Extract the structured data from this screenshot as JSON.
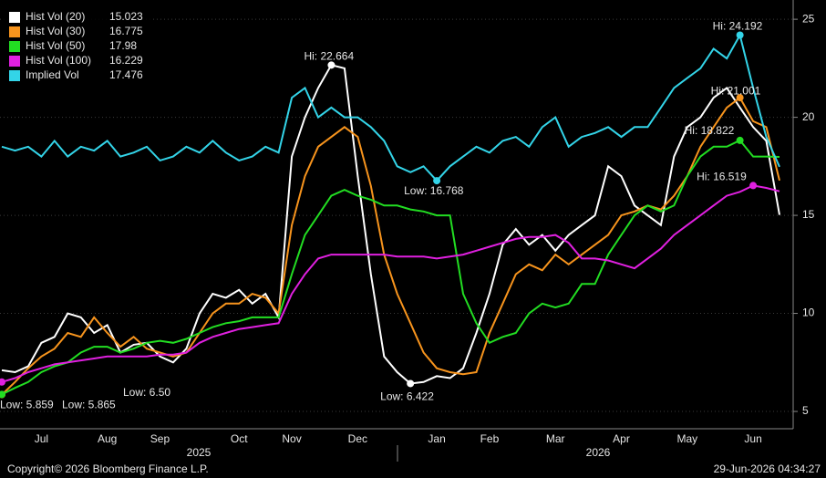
{
  "chart_data": {
    "type": "line",
    "categories": [
      null,
      null,
      null,
      "Jul",
      null,
      null,
      null,
      null,
      "Aug",
      null,
      null,
      null,
      "Sep",
      null,
      null,
      null,
      null,
      null,
      "Oct",
      null,
      null,
      null,
      "Nov",
      null,
      null,
      null,
      null,
      "Dec",
      null,
      null,
      null,
      null,
      null,
      "Jan",
      null,
      null,
      null,
      "Feb",
      null,
      null,
      null,
      null,
      "Mar",
      null,
      null,
      null,
      null,
      "Apr",
      null,
      null,
      null,
      null,
      "May",
      null,
      null,
      null,
      null,
      "Jun",
      null,
      null
    ],
    "year_labels": [
      "2025",
      "2026"
    ],
    "ylim": [
      4.35,
      25.75
    ],
    "yticks": [
      5,
      10,
      15,
      20,
      25
    ],
    "grid": true,
    "series": [
      {
        "name": "Hist Vol (20)",
        "color": "#ffffff",
        "last": 15.023,
        "values": [
          7.1,
          7.0,
          7.3,
          8.5,
          8.8,
          10.0,
          9.8,
          9.0,
          9.4,
          8.0,
          8.4,
          8.5,
          7.8,
          7.5,
          8.2,
          10.0,
          11.0,
          10.8,
          11.2,
          10.5,
          11.0,
          9.8,
          18.0,
          20.0,
          21.5,
          22.664,
          22.5,
          17.0,
          12.0,
          7.8,
          7.0,
          6.422,
          6.5,
          6.8,
          6.7,
          7.2,
          9.0,
          11.0,
          13.5,
          14.3,
          13.5,
          14.0,
          13.2,
          14.0,
          14.5,
          15.0,
          17.5,
          17.0,
          15.5,
          15.0,
          14.5,
          18.0,
          19.5,
          20.0,
          21.0,
          21.5,
          20.5,
          19.5,
          18.8,
          15.023
        ]
      },
      {
        "name": "Hist Vol (30)",
        "color": "#f7941d",
        "last": 16.775,
        "values": [
          5.859,
          6.5,
          7.2,
          7.8,
          8.2,
          9.0,
          8.8,
          9.8,
          9.0,
          8.3,
          8.8,
          8.2,
          8.0,
          7.8,
          8.0,
          9.0,
          10.0,
          10.5,
          10.5,
          11.0,
          10.8,
          10.0,
          14.5,
          17.0,
          18.5,
          19.0,
          19.5,
          19.0,
          16.5,
          13.0,
          11.0,
          9.5,
          8.0,
          7.2,
          7.0,
          6.9,
          7.0,
          9.0,
          10.5,
          12.0,
          12.5,
          12.2,
          13.0,
          12.5,
          13.0,
          13.5,
          14.0,
          15.0,
          15.2,
          15.5,
          15.3,
          16.0,
          17.0,
          18.5,
          19.5,
          20.5,
          21.001,
          19.8,
          19.5,
          16.775
        ]
      },
      {
        "name": "Hist Vol (50)",
        "color": "#22dd22",
        "last": 17.98,
        "values": [
          5.865,
          6.2,
          6.5,
          7.0,
          7.3,
          7.5,
          8.0,
          8.3,
          8.3,
          8.0,
          8.2,
          8.5,
          8.6,
          8.5,
          8.7,
          9.0,
          9.3,
          9.5,
          9.6,
          9.8,
          9.8,
          9.8,
          12.0,
          14.0,
          15.0,
          16.0,
          16.3,
          16.0,
          15.8,
          15.5,
          15.5,
          15.3,
          15.2,
          15.0,
          15.0,
          11.0,
          9.5,
          8.5,
          8.8,
          9.0,
          10.0,
          10.5,
          10.3,
          10.5,
          11.5,
          11.5,
          13.0,
          14.0,
          15.0,
          15.5,
          15.2,
          15.5,
          17.0,
          18.0,
          18.5,
          18.5,
          18.822,
          18.0,
          18.0,
          17.98
        ]
      },
      {
        "name": "Hist Vol (100)",
        "color": "#e020e0",
        "last": 16.229,
        "values": [
          6.5,
          6.7,
          7.0,
          7.2,
          7.4,
          7.5,
          7.6,
          7.7,
          7.8,
          7.8,
          7.8,
          7.8,
          7.9,
          7.9,
          8.0,
          8.5,
          8.8,
          9.0,
          9.2,
          9.3,
          9.4,
          9.5,
          11.0,
          12.0,
          12.8,
          13.0,
          13.0,
          13.0,
          13.0,
          13.0,
          12.9,
          12.9,
          12.9,
          12.8,
          12.9,
          13.0,
          13.2,
          13.4,
          13.6,
          13.8,
          13.9,
          13.9,
          14.0,
          13.6,
          12.8,
          12.8,
          12.7,
          12.5,
          12.3,
          12.8,
          13.3,
          14.0,
          14.5,
          15.0,
          15.5,
          16.0,
          16.2,
          16.519,
          16.4,
          16.229
        ]
      },
      {
        "name": "Implied Vol",
        "color": "#33d4e8",
        "last": 17.476,
        "values": [
          18.5,
          18.3,
          18.5,
          18.0,
          18.8,
          18.0,
          18.5,
          18.3,
          18.8,
          18.0,
          18.2,
          18.5,
          17.8,
          18.0,
          18.5,
          18.2,
          18.8,
          18.2,
          17.8,
          18.0,
          18.5,
          18.2,
          21.0,
          21.5,
          20.0,
          20.5,
          20.0,
          20.0,
          19.5,
          18.8,
          17.5,
          17.2,
          17.5,
          16.768,
          17.5,
          18.0,
          18.5,
          18.2,
          18.8,
          19.0,
          18.5,
          19.5,
          20.0,
          18.5,
          19.0,
          19.2,
          19.5,
          19.0,
          19.5,
          19.5,
          20.5,
          21.5,
          22.0,
          22.5,
          23.5,
          23.0,
          24.192,
          21.5,
          19.0,
          17.476
        ]
      }
    ],
    "annotations": [
      {
        "text": "Hi: 22.664",
        "series": 0,
        "index": 25
      },
      {
        "text": "Low: 6.422",
        "series": 0,
        "index": 31
      },
      {
        "text": "Low: 5.859",
        "series": 1,
        "index": 0
      },
      {
        "text": "Low: 5.865",
        "series": 2,
        "index": 0
      },
      {
        "text": "Low: 6.50",
        "series": 3,
        "index": 0
      },
      {
        "text": "Hi: 21.001",
        "series": 1,
        "index": 56
      },
      {
        "text": "Hi: 18.822",
        "series": 2,
        "index": 56
      },
      {
        "text": "Hi: 16.519",
        "series": 3,
        "index": 57
      },
      {
        "text": "Hi: 24.192",
        "series": 4,
        "index": 56
      },
      {
        "text": "Low: 16.768",
        "series": 4,
        "index": 33
      }
    ]
  },
  "footer": {
    "copyright": "Copyright© 2026 Bloomberg Finance L.P.",
    "timestamp": "29-Jun-2026 04:34:27"
  }
}
